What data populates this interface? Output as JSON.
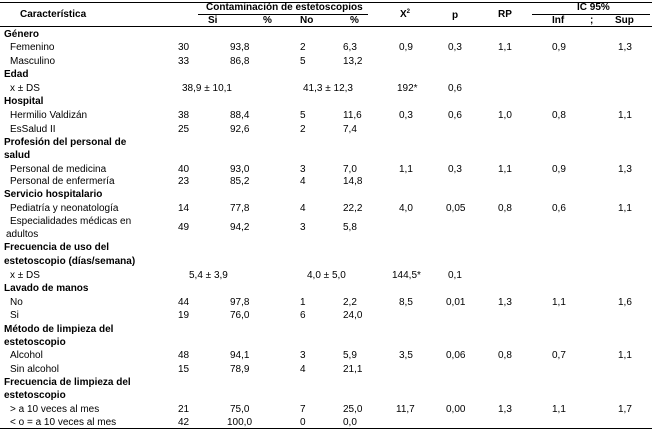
{
  "header": {
    "caracteristica": "Característica",
    "contaminacion": "Contaminación de estetoscopios",
    "si": "Si",
    "pct1": "%",
    "no": "No",
    "pct2": "%",
    "x2_base": "X",
    "x2_sup": "2",
    "p": "p",
    "rp": "RP",
    "ic": "IC 95%",
    "inf": "Inf",
    "sep": ";",
    "sup": "Sup"
  },
  "sections": {
    "genero": "Género",
    "edad": "Edad",
    "hospital": "Hospital",
    "profesion_1": "Profesión del personal de",
    "profesion_2": "salud",
    "servicio": "Servicio hospitalario",
    "frecuencia_uso_1": "Frecuencia de uso del",
    "frecuencia_uso_2": "estetoscopio (días/semana)",
    "lavado": "Lavado de manos",
    "metodo_1": "Método de limpieza del",
    "metodo_2": "estetoscopio",
    "frecuencia_limpieza_1": "Frecuencia de limpieza del",
    "frecuencia_limpieza_2": "estetoscopio"
  },
  "rows": {
    "femenino": {
      "label": "Femenino",
      "si": "30",
      "pct1": "93,8",
      "no": "2",
      "pct2": "6,3",
      "x2": "0,9",
      "p": "0,3",
      "rp": "1,1",
      "inf": "0,9",
      "sup": "1,3"
    },
    "masculino": {
      "label": "Masculino",
      "si": "33",
      "pct1": "86,8",
      "no": "5",
      "pct2": "13,2"
    },
    "edad_ds": {
      "label": "x ± DS",
      "si": "38,9 ± 10,1",
      "no": "41,3 ± 12,3",
      "x2": "192*",
      "p": "0,6"
    },
    "valdizan": {
      "label": "Hermilio Valdizán",
      "si": "38",
      "pct1": "88,4",
      "no": "5",
      "pct2": "11,6",
      "x2": "0,3",
      "p": "0,6",
      "rp": "1,0",
      "inf": "0,8",
      "sup": "1,1"
    },
    "essalud": {
      "label": "EsSalud II",
      "si": "25",
      "pct1": "92,6",
      "no": "2",
      "pct2": "7,4"
    },
    "medicina": {
      "label": "Personal de medicina",
      "si": "40",
      "pct1": "93,0",
      "no": "3",
      "pct2": "7,0",
      "x2": "1,1",
      "p": "0,3",
      "rp": "1,1",
      "inf": "0,9",
      "sup": "1,3"
    },
    "enfermeria": {
      "label": "Personal de enfermería",
      "si": "23",
      "pct1": "85,2",
      "no": "4",
      "pct2": "14,8"
    },
    "pediatria": {
      "label": "Pediatría y neonatología",
      "si": "14",
      "pct1": "77,8",
      "no": "4",
      "pct2": "22,2",
      "x2": "4,0",
      "p": "0,05",
      "rp": "0,8",
      "inf": "0,6",
      "sup": "1,1"
    },
    "especialidades": {
      "label_1": "Especialidades médicas en",
      "label_2": "adultos",
      "si": "49",
      "pct1": "94,2",
      "no": "3",
      "pct2": "5,8"
    },
    "uso_ds": {
      "label": "x ± DS",
      "si": "5,4 ± 3,9",
      "no": "4,0 ± 5,0",
      "x2": "144,5*",
      "p": "0,1"
    },
    "lavado_no": {
      "label": "No",
      "si": "44",
      "pct1": "97,8",
      "no": "1",
      "pct2": "2,2",
      "x2": "8,5",
      "p": "0,01",
      "rp": "1,3",
      "inf": "1,1",
      "sup": "1,6"
    },
    "lavado_si": {
      "label": "Si",
      "si": "19",
      "pct1": "76,0",
      "no": "6",
      "pct2": "24,0"
    },
    "alcohol": {
      "label": "Alcohol",
      "si": "48",
      "pct1": "94,1",
      "no": "3",
      "pct2": "5,9",
      "x2": "3,5",
      "p": "0,06",
      "rp": "0,8",
      "inf": "0,7",
      "sup": "1,1"
    },
    "sin_alcohol": {
      "label": "Sin alcohol",
      "si": "15",
      "pct1": "78,9",
      "no": "4",
      "pct2": "21,1"
    },
    "mayor10": {
      "label": "> a 10 veces al mes",
      "si": "21",
      "pct1": "75,0",
      "no": "7",
      "pct2": "25,0",
      "x2": "11,7",
      "p": "0,00",
      "rp": "1,3",
      "inf": "1,1",
      "sup": "1,7"
    },
    "menor10": {
      "label": "< o = a 10 veces al mes",
      "si": "42",
      "pct1": "100,0",
      "no": "0",
      "pct2": "0,0"
    }
  }
}
